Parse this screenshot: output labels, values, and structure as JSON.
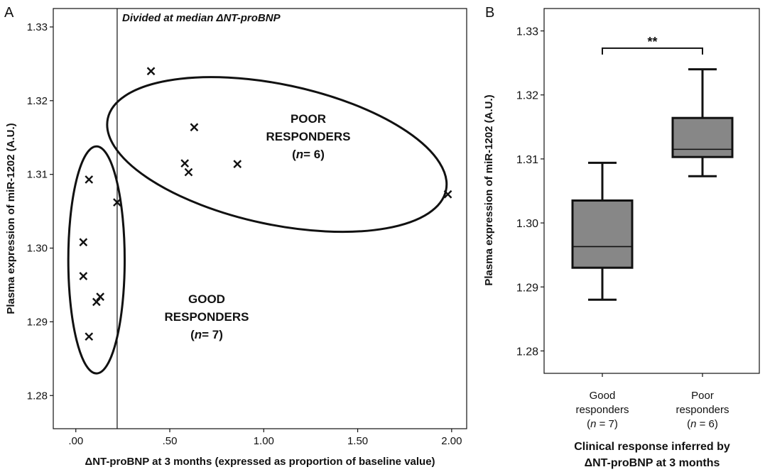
{
  "panels": {
    "a": {
      "letter": "A"
    },
    "b": {
      "letter": "B"
    }
  },
  "chart_data": [
    {
      "type": "scatter",
      "title": "Divided at median ΔNT-proBNP",
      "xlabel": "ΔNT-proBNP at 3 months (expressed as proportion of baseline value)",
      "ylabel": "Plasma expression of miR-1202 (A.U.)",
      "xlim": [
        -0.12,
        2.08
      ],
      "ylim": [
        1.2755,
        1.3325
      ],
      "x_ticks": [
        {
          "value": 0.0,
          "label": ".00"
        },
        {
          "value": 0.5,
          "label": ".50"
        },
        {
          "value": 1.0,
          "label": "1.00"
        },
        {
          "value": 1.5,
          "label": "1.50"
        },
        {
          "value": 2.0,
          "label": "2.00"
        }
      ],
      "y_ticks": [
        {
          "value": 1.28,
          "label": "1.28"
        },
        {
          "value": 1.29,
          "label": "1.29"
        },
        {
          "value": 1.3,
          "label": "1.30"
        },
        {
          "value": 1.31,
          "label": "1.31"
        },
        {
          "value": 1.32,
          "label": "1.32"
        },
        {
          "value": 1.33,
          "label": "1.33"
        }
      ],
      "median_x": 0.22,
      "marker": "x",
      "points": [
        {
          "x": 0.07,
          "y": 1.3093
        },
        {
          "x": 0.22,
          "y": 1.3062
        },
        {
          "x": 0.04,
          "y": 1.3008
        },
        {
          "x": 0.04,
          "y": 1.2962
        },
        {
          "x": 0.13,
          "y": 1.2934
        },
        {
          "x": 0.11,
          "y": 1.2927
        },
        {
          "x": 0.07,
          "y": 1.288
        },
        {
          "x": 0.4,
          "y": 1.324
        },
        {
          "x": 0.63,
          "y": 1.3164
        },
        {
          "x": 0.58,
          "y": 1.3115
        },
        {
          "x": 0.6,
          "y": 1.3103
        },
        {
          "x": 0.86,
          "y": 1.3114
        },
        {
          "x": 1.98,
          "y": 1.3073
        }
      ],
      "groups": [
        {
          "line1": "POOR",
          "line2": "RESPONDERS",
          "n_label": "n",
          "n_value": "= 6",
          "ellipse": {
            "cx": 1.07,
            "cy": 1.3127,
            "rx": 0.92,
            "ry": 0.0095
          }
        },
        {
          "line1": "GOOD",
          "line2": "RESPONDERS",
          "n_label": "n",
          "n_value": "= 7",
          "ellipse": {
            "cx": 0.11,
            "cy": 1.2984,
            "rx": 0.15,
            "ry": 0.0154
          }
        }
      ],
      "grid": false
    },
    {
      "type": "box",
      "xlabel_line1": "Clinical response inferred by",
      "xlabel_line2": "ΔNT-proBNP at 3 months",
      "ylabel": "Plasma expression of miR-1202 (A.U.)",
      "ylim": [
        1.2765,
        1.3335
      ],
      "y_ticks": [
        {
          "value": 1.28,
          "label": "1.28"
        },
        {
          "value": 1.29,
          "label": "1.29"
        },
        {
          "value": 1.3,
          "label": "1.30"
        },
        {
          "value": 1.31,
          "label": "1.31"
        },
        {
          "value": 1.32,
          "label": "1.32"
        },
        {
          "value": 1.33,
          "label": "1.33"
        }
      ],
      "fill_color": "#878787",
      "categories": [
        {
          "line1": "Good",
          "line2": "responders",
          "n_label": "n",
          "n_value": " = 7)",
          "min": 1.288,
          "q1": 1.293,
          "median": 1.2963,
          "q3": 1.3035,
          "max": 1.3094
        },
        {
          "line1": "Poor",
          "line2": "responders",
          "n_label": "n",
          "n_value": " = 6)",
          "min": 1.3073,
          "q1": 1.3103,
          "median": 1.3115,
          "q3": 1.3164,
          "max": 1.324
        }
      ],
      "significance": {
        "label": "**",
        "y": 1.3273
      }
    }
  ]
}
